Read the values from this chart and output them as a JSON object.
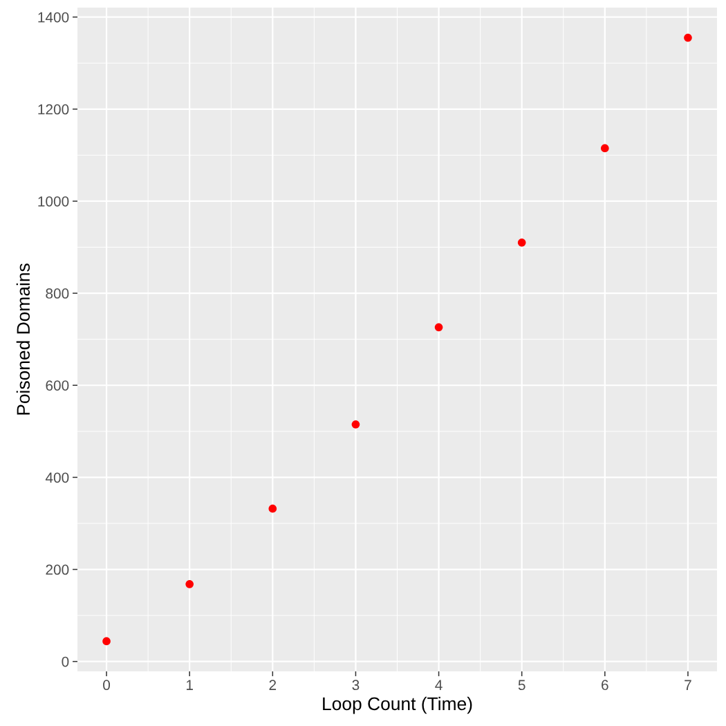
{
  "chart_data": {
    "type": "scatter",
    "xlabel": "Loop Count (Time)",
    "ylabel": "Poisoned Domains",
    "x": [
      0,
      1,
      2,
      3,
      4,
      5,
      6,
      7
    ],
    "series": [
      {
        "color": "#ff0000",
        "values": [
          44,
          168,
          332,
          515,
          726,
          910,
          1115,
          1355
        ]
      }
    ],
    "xlim": [
      -0.35,
      7.35
    ],
    "xticks": [
      0,
      1,
      2,
      3,
      4,
      5,
      6,
      7
    ],
    "ylim": [
      -21.5,
      1420.5
    ],
    "yticks": [
      0,
      200,
      400,
      600,
      800,
      1000,
      1200,
      1400
    ],
    "grid": true,
    "marker": "circle"
  }
}
